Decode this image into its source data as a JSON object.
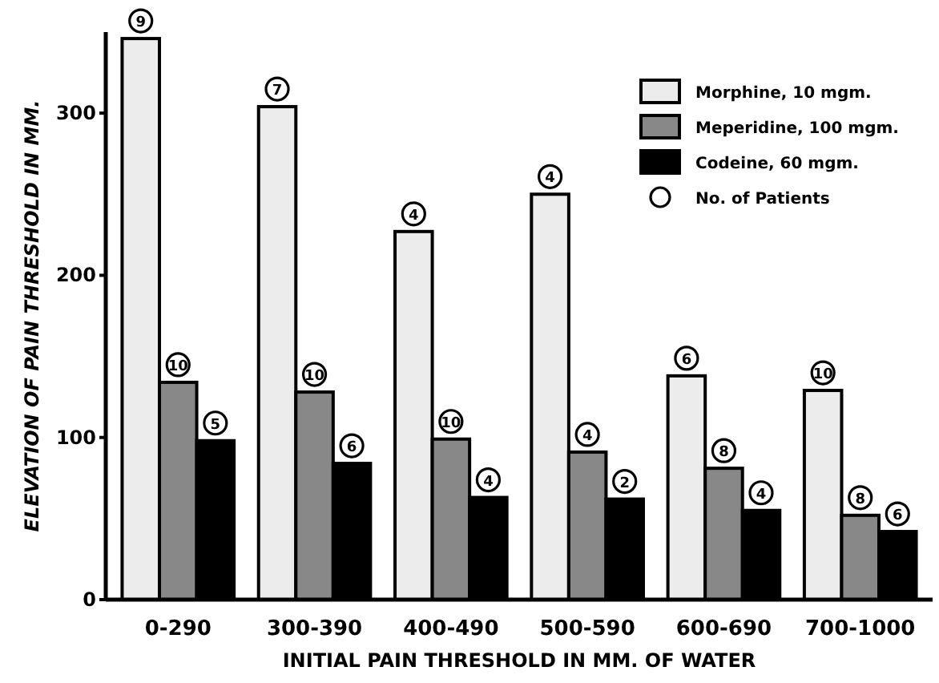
{
  "chart_data": {
    "type": "bar",
    "xlabel": "INITIAL PAIN THRESHOLD IN MM. OF WATER",
    "ylabel": "ELEVATION OF PAIN THRESHOLD IN MM.",
    "categories": [
      "0-290",
      "300-390",
      "400-490",
      "500-590",
      "600-690",
      "700-1000"
    ],
    "series": [
      {
        "name": "Morphine, 10 mgm.",
        "color": "#ececec",
        "values": [
          346,
          304,
          227,
          250,
          138,
          129
        ]
      },
      {
        "name": "Meperidine, 100 mgm.",
        "color": "#888888",
        "values": [
          134,
          128,
          99,
          91,
          81,
          52
        ]
      },
      {
        "name": "Codeine, 60 mgm.",
        "color": "#000000",
        "values": [
          98,
          84,
          63,
          62,
          55,
          42
        ]
      }
    ],
    "ylim": [
      0,
      350
    ],
    "yticks": [
      0,
      100,
      200,
      300
    ],
    "legend": "top right",
    "grid": false,
    "annotations": [
      "9",
      "10",
      "5",
      "7",
      "10",
      "6",
      "4",
      "10",
      "4",
      "4",
      "4",
      "2",
      "6",
      "8",
      "4",
      "10",
      "8",
      "6",
      "No. of Patients"
    ]
  }
}
